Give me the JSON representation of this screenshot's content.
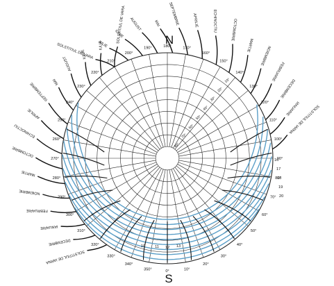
{
  "cardinals": {
    "north": "N",
    "south": "S"
  },
  "azimuth_labels": [
    "0°",
    "10°",
    "20°",
    "30°",
    "40°",
    "50°",
    "60°",
    "70°",
    "80°",
    "90°",
    "100°",
    "110°",
    "120°",
    "130°",
    "140°",
    "150°",
    "160°",
    "170°",
    "180°",
    "190°",
    "200°",
    "210°",
    "220°",
    "230°",
    "240°",
    "250°",
    "260°",
    "270°",
    "280°",
    "290°",
    "300°",
    "310°",
    "320°",
    "330°",
    "340°",
    "350°"
  ],
  "altitude_labels": [
    "10°",
    "20°",
    "30°",
    "40°",
    "50°",
    "60°",
    "70°",
    "80°"
  ],
  "hour_labels_bottom": [
    "10",
    "11",
    "12",
    "13"
  ],
  "hour_labels_right": [
    "16",
    "17",
    "18",
    "19",
    "20"
  ],
  "months_left": [
    "SOLSTITIUL DE VARA",
    "IULIE",
    "IUNIE",
    "AUGUST",
    "MAI",
    "SEPTEMBRIE",
    "APRILIE",
    "ECHINOCTIU",
    "OCTOMBRIE",
    "MARTIE",
    "NOIEMBRIE",
    "FEBRUARIE",
    "DECEMBRIE",
    "IANUARIE",
    "SOLSTITIUL DE IARNA"
  ],
  "months_right": [
    "SOLSTITIUL DE VARA",
    "IULIE",
    "IUNIE",
    "AUGUST",
    "MAI",
    "SEPTEMBRIE",
    "APRILIE",
    "ECHINOCTIU",
    "OCTOMBRIE",
    "MARTIE",
    "NOIEMBRIE",
    "FEBRUARIE",
    "IANUARIE",
    "DECEMBRIE",
    "SOLSTITIUL DE IARNA"
  ],
  "colors": {
    "grid": "#222222",
    "day_path": "#5b9fc8",
    "hour_line": "#111111"
  }
}
